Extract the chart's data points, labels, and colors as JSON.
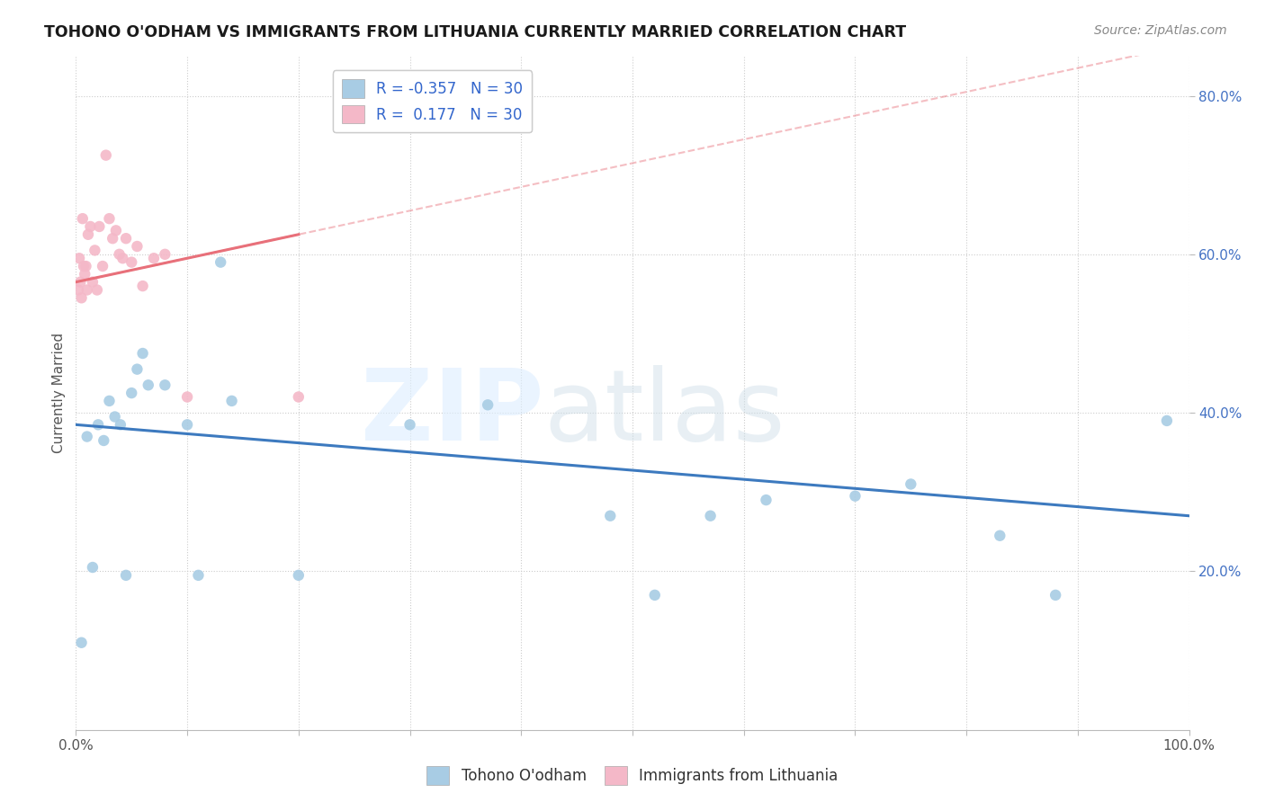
{
  "title": "TOHONO O'ODHAM VS IMMIGRANTS FROM LITHUANIA CURRENTLY MARRIED CORRELATION CHART",
  "source": "Source: ZipAtlas.com",
  "ylabel": "Currently Married",
  "xlim": [
    0.0,
    1.0
  ],
  "ylim": [
    0.0,
    0.85
  ],
  "xticks": [
    0.0,
    0.1,
    0.2,
    0.3,
    0.4,
    0.5,
    0.6,
    0.7,
    0.8,
    0.9,
    1.0
  ],
  "yticks": [
    0.2,
    0.4,
    0.6,
    0.8
  ],
  "ytick_labels": [
    "20.0%",
    "40.0%",
    "60.0%",
    "80.0%"
  ],
  "legend1_label": "R = -0.357   N = 30",
  "legend2_label": "R =  0.177   N = 30",
  "legend_label1": "Tohono O'odham",
  "legend_label2": "Immigrants from Lithuania",
  "blue_color": "#a8cce4",
  "pink_color": "#f4b8c8",
  "blue_line_color": "#3d7abf",
  "pink_line_color": "#e8707a",
  "background_color": "#ffffff",
  "grid_color": "#cccccc",
  "blue_scatter_x": [
    0.005,
    0.01,
    0.015,
    0.02,
    0.025,
    0.03,
    0.035,
    0.04,
    0.045,
    0.05,
    0.055,
    0.06,
    0.065,
    0.08,
    0.1,
    0.11,
    0.13,
    0.14,
    0.2,
    0.3,
    0.37,
    0.48,
    0.52,
    0.57,
    0.62,
    0.7,
    0.75,
    0.83,
    0.88,
    0.98
  ],
  "blue_scatter_y": [
    0.11,
    0.37,
    0.205,
    0.385,
    0.365,
    0.415,
    0.395,
    0.385,
    0.195,
    0.425,
    0.455,
    0.475,
    0.435,
    0.435,
    0.385,
    0.195,
    0.59,
    0.415,
    0.195,
    0.385,
    0.41,
    0.27,
    0.17,
    0.27,
    0.29,
    0.295,
    0.31,
    0.245,
    0.17,
    0.39
  ],
  "pink_scatter_x": [
    0.002,
    0.003,
    0.004,
    0.005,
    0.006,
    0.007,
    0.008,
    0.009,
    0.01,
    0.011,
    0.013,
    0.015,
    0.017,
    0.019,
    0.021,
    0.024,
    0.027,
    0.03,
    0.033,
    0.036,
    0.039,
    0.042,
    0.045,
    0.05,
    0.055,
    0.06,
    0.07,
    0.08,
    0.1,
    0.2
  ],
  "pink_scatter_y": [
    0.555,
    0.595,
    0.565,
    0.545,
    0.645,
    0.585,
    0.575,
    0.585,
    0.555,
    0.625,
    0.635,
    0.565,
    0.605,
    0.555,
    0.635,
    0.585,
    0.725,
    0.645,
    0.62,
    0.63,
    0.6,
    0.595,
    0.62,
    0.59,
    0.61,
    0.56,
    0.595,
    0.6,
    0.42,
    0.42
  ],
  "blue_trend_x": [
    0.0,
    1.0
  ],
  "blue_trend_y": [
    0.385,
    0.27
  ],
  "pink_trend_x": [
    0.0,
    0.2
  ],
  "pink_trend_y": [
    0.565,
    0.625
  ],
  "pink_dash_trend_x": [
    0.0,
    1.0
  ],
  "pink_dash_trend_y": [
    0.565,
    0.865
  ]
}
